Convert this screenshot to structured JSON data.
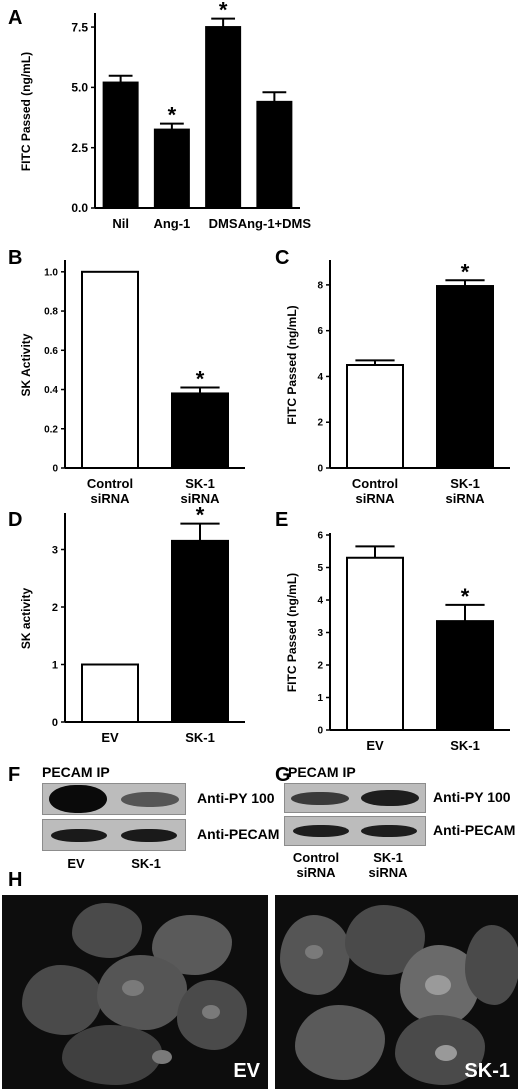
{
  "panels": {
    "A": "A",
    "B": "B",
    "C": "C",
    "D": "D",
    "E": "E",
    "F": "F",
    "G": "G",
    "H": "H"
  },
  "chart_data": [
    {
      "id": "A",
      "type": "bar",
      "ylabel": "FITC Passed (ng/mL)",
      "categories": [
        "Nil",
        "Ang-1",
        "DMS",
        "Ang-1+DMS"
      ],
      "values": [
        5.2,
        3.25,
        7.5,
        4.4
      ],
      "errors": [
        0.28,
        0.25,
        0.35,
        0.4
      ],
      "significant": [
        false,
        true,
        true,
        false
      ],
      "ylim": [
        0,
        8
      ],
      "yticks": [
        0.0,
        2.5,
        5.0,
        7.5
      ],
      "ytick_labels": [
        "0.0",
        "2.5",
        "5.0",
        "7.5"
      ],
      "fills": [
        "#000000",
        "#000000",
        "#000000",
        "#000000"
      ],
      "star": "*"
    },
    {
      "id": "B",
      "type": "bar",
      "ylabel": "SK Activity",
      "categories": [
        "Control\nsiRNA",
        "SK-1\nsiRNA"
      ],
      "values": [
        1.0,
        0.38
      ],
      "errors": [
        0,
        0.03
      ],
      "significant": [
        false,
        true
      ],
      "ylim": [
        0,
        1.05
      ],
      "yticks": [
        0,
        0.2,
        0.4,
        0.6,
        0.8,
        1.0
      ],
      "ytick_labels": [
        "0",
        "0.2",
        "0.4",
        "0.6",
        "0.8",
        "1.0"
      ],
      "fills": [
        "#ffffff",
        "#000000"
      ],
      "star": "*"
    },
    {
      "id": "C",
      "type": "bar",
      "ylabel": "FITC Passed (ng/mL)",
      "categories": [
        "Control\nsiRNA",
        "SK-1\nsiRNA"
      ],
      "values": [
        4.5,
        7.95
      ],
      "errors": [
        0.2,
        0.25
      ],
      "significant": [
        false,
        true
      ],
      "ylim": [
        0,
        9
      ],
      "yticks": [
        0,
        2,
        4,
        6,
        8
      ],
      "ytick_labels": [
        "0",
        "2",
        "4",
        "6",
        "8"
      ],
      "fills": [
        "#ffffff",
        "#000000"
      ],
      "star": "*"
    },
    {
      "id": "D",
      "type": "bar",
      "ylabel": "SK activity",
      "categories": [
        "EV",
        "SK-1"
      ],
      "values": [
        1.0,
        3.15
      ],
      "errors": [
        0,
        0.3
      ],
      "significant": [
        false,
        true
      ],
      "ylim": [
        0,
        3.6
      ],
      "yticks": [
        0,
        1,
        2,
        3
      ],
      "ytick_labels": [
        "0",
        "1",
        "2",
        "3"
      ],
      "fills": [
        "#ffffff",
        "#000000"
      ],
      "star": "*"
    },
    {
      "id": "E",
      "type": "bar",
      "ylabel": "FITC Passed (ng/mL)",
      "categories": [
        "EV",
        "SK-1"
      ],
      "values": [
        5.3,
        3.35
      ],
      "errors": [
        0.35,
        0.5
      ],
      "significant": [
        false,
        true
      ],
      "ylim": [
        0,
        6
      ],
      "yticks": [
        0,
        1,
        2,
        3,
        4,
        5,
        6
      ],
      "ytick_labels": [
        "0",
        "1",
        "2",
        "3",
        "4",
        "5",
        "6"
      ],
      "fills": [
        "#ffffff",
        "#000000"
      ],
      "star": "*"
    }
  ],
  "blots": {
    "F": {
      "title": "PECAM IP",
      "rows": [
        "Anti-PY 100",
        "Anti-PECAM"
      ],
      "lanes": [
        "EV",
        "SK-1"
      ],
      "band_intensity": [
        [
          1.0,
          0.45
        ],
        [
          0.9,
          0.9
        ]
      ]
    },
    "G": {
      "title": "PECAM IP",
      "rows": [
        "Anti-PY 100",
        "Anti-PECAM"
      ],
      "lanes": [
        "Control\nsiRNA",
        "SK-1\nsiRNA"
      ],
      "band_intensity": [
        [
          0.6,
          0.8
        ],
        [
          0.85,
          0.85
        ]
      ]
    }
  },
  "micrographs": {
    "left_label": "EV",
    "right_label": "SK-1"
  }
}
